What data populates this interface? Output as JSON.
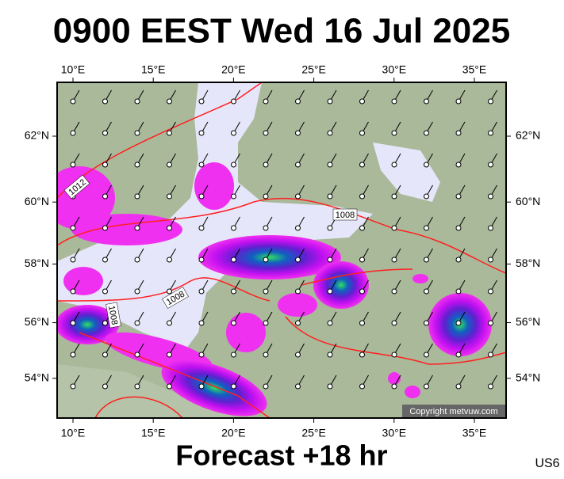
{
  "title": "0900 EEST Wed 16 Jul 2025",
  "footer": "Forecast +18 hr",
  "region_code": "US6",
  "copyright": "Copyright metvuw.com",
  "lon_ticks": [
    {
      "value": 10,
      "label": "10°E"
    },
    {
      "value": 15,
      "label": "15°E"
    },
    {
      "value": 20,
      "label": "20°E"
    },
    {
      "value": 25,
      "label": "25°E"
    },
    {
      "value": 30,
      "label": "30°E"
    },
    {
      "value": 35,
      "label": "35°E"
    }
  ],
  "lat_ticks": [
    {
      "value": 62,
      "label": "62°N"
    },
    {
      "value": 60,
      "label": "60°N"
    },
    {
      "value": 58,
      "label": "58°N"
    },
    {
      "value": 56,
      "label": "56°N"
    },
    {
      "value": 54,
      "label": "54°N"
    }
  ],
  "isobar_labels": [
    1012,
    1008,
    1008,
    1008
  ]
}
